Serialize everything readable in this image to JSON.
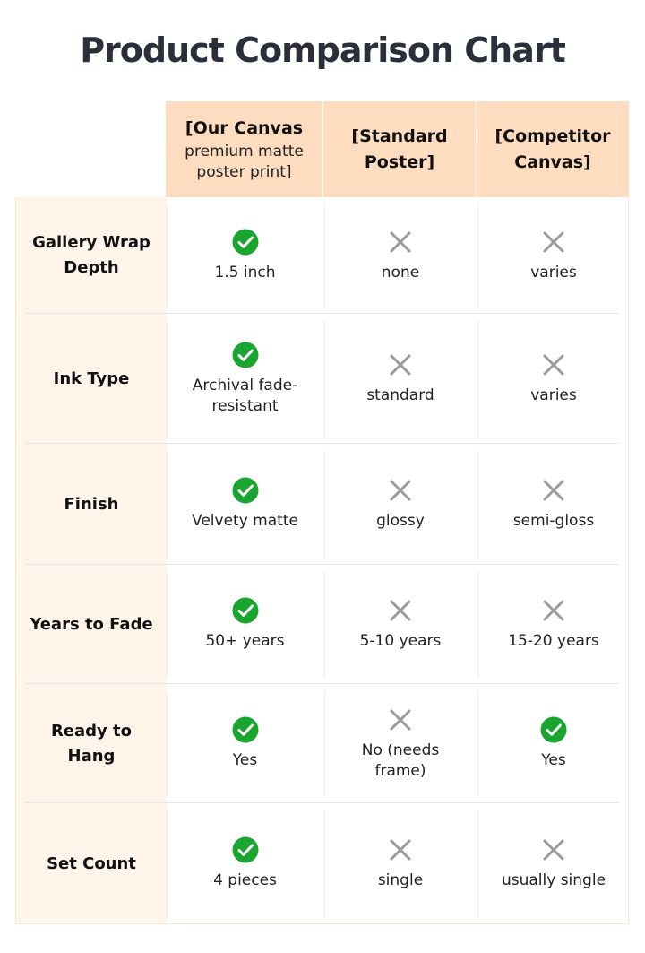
{
  "title": "Product Comparison Chart",
  "columns": [
    {
      "title": "[Our Canvas",
      "subtitle": "premium matte poster print]"
    },
    {
      "title": "[Standard Poster]",
      "subtitle": ""
    },
    {
      "title": "[Competitor Canvas]",
      "subtitle": ""
    }
  ],
  "colors": {
    "header_bg": "#fddcc0",
    "label_bg": "#fff4ea",
    "check": "#1aa531",
    "cross": "#9b9b9b"
  },
  "rows": [
    {
      "label": "Gallery Wrap Depth",
      "cells": [
        {
          "icon": "check",
          "text": "1.5 inch"
        },
        {
          "icon": "cross",
          "text": "none"
        },
        {
          "icon": "cross",
          "text": "varies"
        }
      ]
    },
    {
      "label": "Ink Type",
      "cells": [
        {
          "icon": "check",
          "text": "Archival fade-resistant"
        },
        {
          "icon": "cross",
          "text": "standard"
        },
        {
          "icon": "cross",
          "text": "varies"
        }
      ]
    },
    {
      "label": "Finish",
      "cells": [
        {
          "icon": "check",
          "text": "Velvety matte"
        },
        {
          "icon": "cross",
          "text": "glossy"
        },
        {
          "icon": "cross",
          "text": "semi-gloss"
        }
      ]
    },
    {
      "label": "Years to Fade",
      "cells": [
        {
          "icon": "check",
          "text": "50+ years"
        },
        {
          "icon": "cross",
          "text": "5-10 years"
        },
        {
          "icon": "cross",
          "text": "15-20 years"
        }
      ]
    },
    {
      "label": "Ready to Hang",
      "cells": [
        {
          "icon": "check",
          "text": "Yes"
        },
        {
          "icon": "cross",
          "text": "No (needs frame)"
        },
        {
          "icon": "check",
          "text": "Yes"
        }
      ]
    },
    {
      "label": "Set Count",
      "cells": [
        {
          "icon": "check",
          "text": "4 pieces"
        },
        {
          "icon": "cross",
          "text": "single"
        },
        {
          "icon": "cross",
          "text": "usually single"
        }
      ]
    }
  ]
}
